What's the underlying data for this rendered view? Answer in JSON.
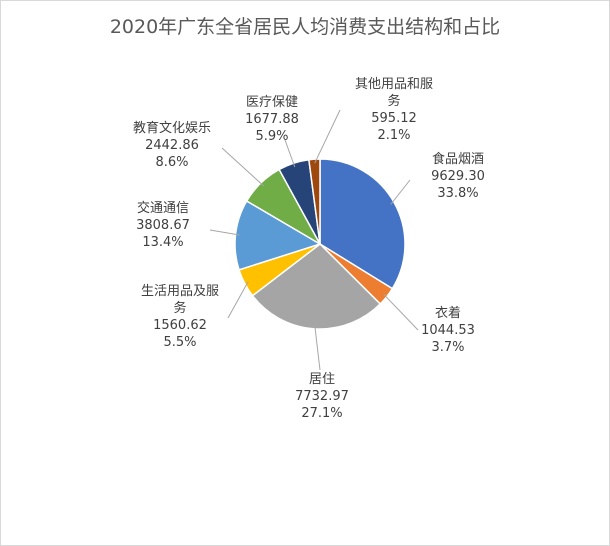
{
  "chart_data": {
    "type": "pie",
    "title": "2020年广东全省居民人均消费支出结构和占比",
    "slices": [
      {
        "name": "食品烟酒",
        "value": "9629.30",
        "percent": "33.8%",
        "color": "#4472C4"
      },
      {
        "name": "衣着",
        "value": "1044.53",
        "percent": "3.7%",
        "color": "#ED7D31"
      },
      {
        "name": "居住",
        "value": "7732.97",
        "percent": "27.1%",
        "color": "#A5A5A5"
      },
      {
        "name": "生活用品及服务",
        "value": "1560.62",
        "percent": "5.5%",
        "color": "#FFC000"
      },
      {
        "name": "交通通信",
        "value": "3808.67",
        "percent": "13.4%",
        "color": "#5B9BD5"
      },
      {
        "name": "教育文化娱乐",
        "value": "2442.86",
        "percent": "8.6%",
        "color": "#70AD47"
      },
      {
        "name": "医疗保健",
        "value": "1677.88",
        "percent": "5.9%",
        "color": "#264478"
      },
      {
        "name": "其他用品和服务",
        "value": "595.12",
        "percent": "2.1%",
        "color": "#9E480E"
      }
    ]
  }
}
